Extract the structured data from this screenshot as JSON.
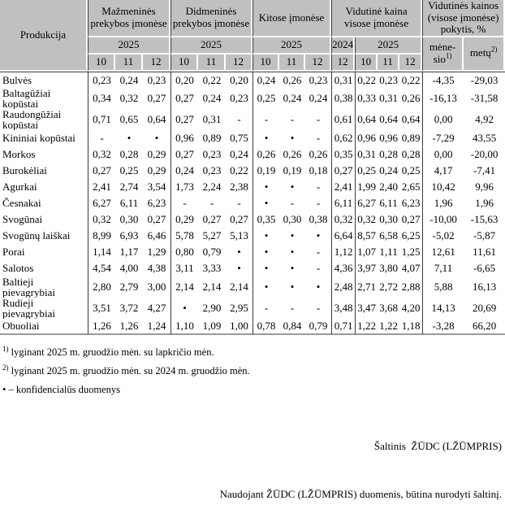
{
  "table": {
    "produkcija_header": "Produkcija",
    "groups": [
      {
        "label": "Mažmeninės prekybos įmonėse"
      },
      {
        "label": "Didmeninės prekybos įmonėse"
      },
      {
        "label": "Kitose įmonėse"
      },
      {
        "label": "Vidutinė kaina visose įmonėse"
      },
      {
        "label": "Vidutinės kainos (visose įmonėse) pokytis, %"
      }
    ],
    "years": [
      "2025",
      "2025",
      "2025",
      "2024",
      "2025"
    ],
    "months": [
      "10",
      "11",
      "12",
      "10",
      "11",
      "12",
      "10",
      "11",
      "12",
      "12",
      "10",
      "11",
      "12"
    ],
    "change_cols": [
      {
        "line1": "mėne-",
        "line2": "sio",
        "sup": "1)"
      },
      {
        "line1": "metų",
        "sup": "2)"
      }
    ],
    "rows": [
      {
        "name": "Bulvės",
        "values": [
          "0,23",
          "0,24",
          "0,23",
          "0,20",
          "0,22",
          "0,20",
          "0,24",
          "0,26",
          "0,23",
          "0,31",
          "0,22",
          "0,23",
          "0,22",
          "-4,35",
          "-29,03"
        ]
      },
      {
        "name": "Baltagūžiai kopūstai",
        "values": [
          "0,34",
          "0,32",
          "0,27",
          "0,27",
          "0,24",
          "0,23",
          "0,25",
          "0,24",
          "0,24",
          "0,38",
          "0,33",
          "0,31",
          "0,26",
          "-16,13",
          "-31,58"
        ]
      },
      {
        "name": "Raudongūžiai kopūstai",
        "values": [
          "0,71",
          "0,65",
          "0,64",
          "0,27",
          "0,31",
          "-",
          "-",
          "-",
          "-",
          "0,61",
          "0,64",
          "0,64",
          "0,64",
          "0,00",
          "4,92"
        ]
      },
      {
        "name": "Kininiai kopūstai",
        "values": [
          "-",
          "•",
          "•",
          "0,96",
          "0,89",
          "0,75",
          "•",
          "•",
          "-",
          "0,62",
          "0,96",
          "0,96",
          "0,89",
          "-7,29",
          "43,55"
        ]
      },
      {
        "name": "Morkos",
        "values": [
          "0,32",
          "0,28",
          "0,29",
          "0,27",
          "0,23",
          "0,24",
          "0,26",
          "0,26",
          "0,26",
          "0,35",
          "0,31",
          "0,28",
          "0,28",
          "0,00",
          "-20,00"
        ]
      },
      {
        "name": "Burokėliai",
        "values": [
          "0,27",
          "0,25",
          "0,29",
          "0,24",
          "0,23",
          "0,22",
          "0,19",
          "0,19",
          "0,18",
          "0,27",
          "0,25",
          "0,24",
          "0,25",
          "4,17",
          "-7,41"
        ]
      },
      {
        "name": "Agurkai",
        "values": [
          "2,41",
          "2,74",
          "3,54",
          "1,73",
          "2,24",
          "2,38",
          "•",
          "•",
          "-",
          "2,41",
          "1,99",
          "2,40",
          "2,65",
          "10,42",
          "9,96"
        ]
      },
      {
        "name": "Česnakai",
        "values": [
          "6,27",
          "6,11",
          "6,23",
          "-",
          "-",
          "-",
          "•",
          "-",
          "-",
          "6,11",
          "6,27",
          "6,11",
          "6,23",
          "1,96",
          "1,96"
        ]
      },
      {
        "name": "Svogūnai",
        "values": [
          "0,32",
          "0,30",
          "0,27",
          "0,29",
          "0,27",
          "0,27",
          "0,35",
          "0,30",
          "0,38",
          "0,32",
          "0,32",
          "0,30",
          "0,27",
          "-10,00",
          "-15,63"
        ]
      },
      {
        "name": "Svogūnų laiškai",
        "values": [
          "8,99",
          "6,93",
          "6,46",
          "5,78",
          "5,27",
          "5,13",
          "•",
          "•",
          "•",
          "6,64",
          "8,57",
          "6,58",
          "6,25",
          "-5,02",
          "-5,87"
        ]
      },
      {
        "name": "Porai",
        "values": [
          "1,14",
          "1,17",
          "1,29",
          "0,80",
          "0,79",
          "•",
          "•",
          "•",
          "-",
          "1,12",
          "1,07",
          "1,11",
          "1,25",
          "12,61",
          "11,61"
        ]
      },
      {
        "name": "Salotos",
        "values": [
          "4,54",
          "4,00",
          "4,38",
          "3,11",
          "3,33",
          "•",
          "•",
          "•",
          "-",
          "4,36",
          "3,97",
          "3,80",
          "4,07",
          "7,11",
          "-6,65"
        ]
      },
      {
        "name": "Baltieji pievagrybiai",
        "values": [
          "2,80",
          "2,79",
          "3,00",
          "2,14",
          "2,14",
          "2,14",
          "•",
          "•",
          "•",
          "2,48",
          "2,71",
          "2,72",
          "2,88",
          "5,88",
          "16,13"
        ]
      },
      {
        "name": "Rudieji pievagrybiai",
        "values": [
          "3,51",
          "3,72",
          "4,27",
          "•",
          "2,90",
          "2,95",
          "-",
          "-",
          "-",
          "3,48",
          "3,47",
          "3,68",
          "4,20",
          "14,13",
          "20,69"
        ]
      },
      {
        "name": "Obuoliai",
        "values": [
          "1,26",
          "1,26",
          "1,24",
          "1,10",
          "1,09",
          "1,00",
          "0,78",
          "0,84",
          "0,79",
          "0,71",
          "1,22",
          "1,22",
          "1,18",
          "-3,28",
          "66,20"
        ]
      }
    ]
  },
  "footnotes": [
    {
      "sup": "1)",
      "text": "lyginant 2025 m. gruodžio mėn. su lapkričio mėn."
    },
    {
      "sup": "2)",
      "text": "lyginant 2025 m. gruodžio mėn. su 2024 m. gruodžio mėn."
    },
    {
      "sup": "",
      "text": "• – konfidencialūs duomenys"
    }
  ],
  "source": {
    "line1": "Šaltinis  ŽŪDC (LŽŪMPRIS)",
    "line2": "Naudojant ŽŪDC (LŽŪMPRIS) duomenis, būtina nurodyti šaltinį."
  },
  "colors": {
    "header_bg": "#c0c0c0",
    "group_line": "#3c3c3c",
    "bottom_border": "#9a9a9a"
  }
}
